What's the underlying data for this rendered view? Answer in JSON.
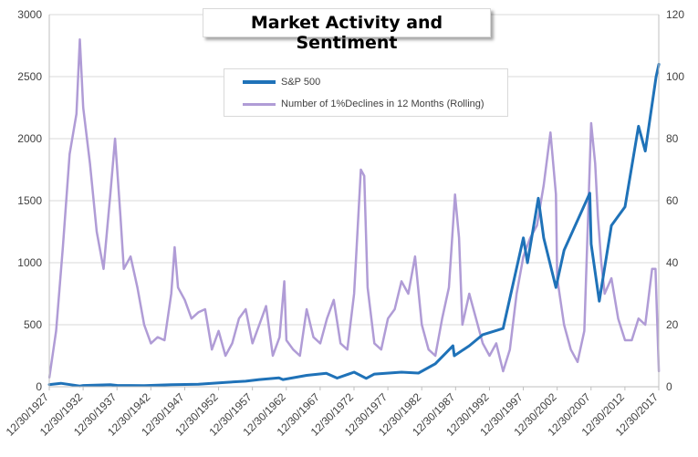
{
  "chart_data": {
    "type": "line",
    "title": "Market Activity and Sentiment",
    "x_ticks": [
      "12/30/1927",
      "12/30/1932",
      "12/30/1937",
      "12/30/1942",
      "12/30/1947",
      "12/30/1952",
      "12/30/1957",
      "12/30/1962",
      "12/30/1967",
      "12/30/1972",
      "12/30/1977",
      "12/30/1982",
      "12/30/1987",
      "12/30/1992",
      "12/30/1997",
      "12/30/2002",
      "12/30/2007",
      "12/30/2012",
      "12/30/2017"
    ],
    "xlim": [
      1927.99,
      2017.99
    ],
    "y_left_ticks": [
      "0",
      "500",
      "1000",
      "1500",
      "2000",
      "2500",
      "3000"
    ],
    "ylim_left": [
      0,
      3000
    ],
    "y_right_ticks": [
      "0",
      "20",
      "40",
      "60",
      "80",
      "100",
      "120"
    ],
    "ylim_right": [
      0,
      120
    ],
    "grid": true,
    "legend_position": "top-center",
    "series": [
      {
        "name": "S&P 500",
        "axis": "left",
        "color": "#1f72b8",
        "x": [
          1928,
          1929.7,
          1932.5,
          1933,
          1937,
          1938,
          1942,
          1946,
          1950,
          1954,
          1957,
          1959,
          1961.9,
          1962.5,
          1966,
          1968.9,
          1970.5,
          1973,
          1974.8,
          1976,
          1980,
          1982.5,
          1985,
          1987.6,
          1987.8,
          1990,
          1992,
          1995,
          1998,
          1998.6,
          2000.2,
          2001,
          2002.8,
          2004,
          2007.8,
          2008,
          2009.2,
          2011,
          2013,
          2015,
          2016,
          2017.6,
          2018
        ],
        "y": [
          18,
          28,
          6,
          10,
          17,
          11,
          9,
          17,
          20,
          35,
          45,
          58,
          72,
          58,
          92,
          108,
          70,
          118,
          68,
          102,
          118,
          110,
          185,
          330,
          250,
          330,
          420,
          470,
          1200,
          1000,
          1520,
          1200,
          800,
          1100,
          1560,
          1150,
          690,
          1300,
          1450,
          2100,
          1900,
          2500,
          2600
        ]
      },
      {
        "name": "Number of 1%Declines in 12 Months (Rolling)",
        "axis": "right",
        "color": "#b09cd6",
        "x": [
          1928,
          1929,
          1930,
          1931,
          1932,
          1932.5,
          1933,
          1934,
          1935,
          1936,
          1937,
          1937.7,
          1938.5,
          1939,
          1940,
          1941,
          1942,
          1943,
          1944,
          1945,
          1946,
          1946.5,
          1947,
          1948,
          1949,
          1950,
          1951,
          1952,
          1953,
          1954,
          1955,
          1956,
          1957,
          1958,
          1959,
          1960,
          1961,
          1962,
          1962.7,
          1963,
          1964,
          1965,
          1966,
          1967,
          1968,
          1969,
          1970,
          1971,
          1972,
          1973,
          1974,
          1974.5,
          1975,
          1976,
          1977,
          1978,
          1979,
          1980,
          1981,
          1982,
          1983,
          1984,
          1985,
          1986,
          1987,
          1987.9,
          1988.5,
          1989,
          1990,
          1991,
          1992,
          1993,
          1994,
          1995,
          1996,
          1997,
          1998,
          1999,
          2000,
          2001,
          2002,
          2002.8,
          2003,
          2004,
          2005,
          2006,
          2007,
          2008,
          2008.6,
          2009,
          2009.5,
          2010,
          2011,
          2012,
          2013,
          2014,
          2015,
          2016,
          2017,
          2017.5,
          2018
        ],
        "y": [
          3,
          18,
          45,
          75,
          88,
          112,
          90,
          72,
          50,
          38,
          62,
          80,
          55,
          38,
          42,
          32,
          20,
          14,
          16,
          15,
          30,
          45,
          32,
          28,
          22,
          24,
          25,
          12,
          18,
          10,
          14,
          22,
          25,
          14,
          20,
          26,
          10,
          16,
          34,
          15,
          12,
          10,
          25,
          16,
          14,
          22,
          28,
          14,
          12,
          30,
          70,
          68,
          32,
          14,
          12,
          22,
          25,
          34,
          30,
          42,
          20,
          12,
          10,
          22,
          32,
          62,
          48,
          20,
          30,
          22,
          14,
          10,
          14,
          5,
          12,
          30,
          42,
          48,
          52,
          65,
          82,
          62,
          35,
          20,
          12,
          8,
          18,
          85,
          72,
          55,
          40,
          30,
          35,
          22,
          15,
          15,
          22,
          20,
          38,
          38,
          5
        ]
      }
    ]
  }
}
